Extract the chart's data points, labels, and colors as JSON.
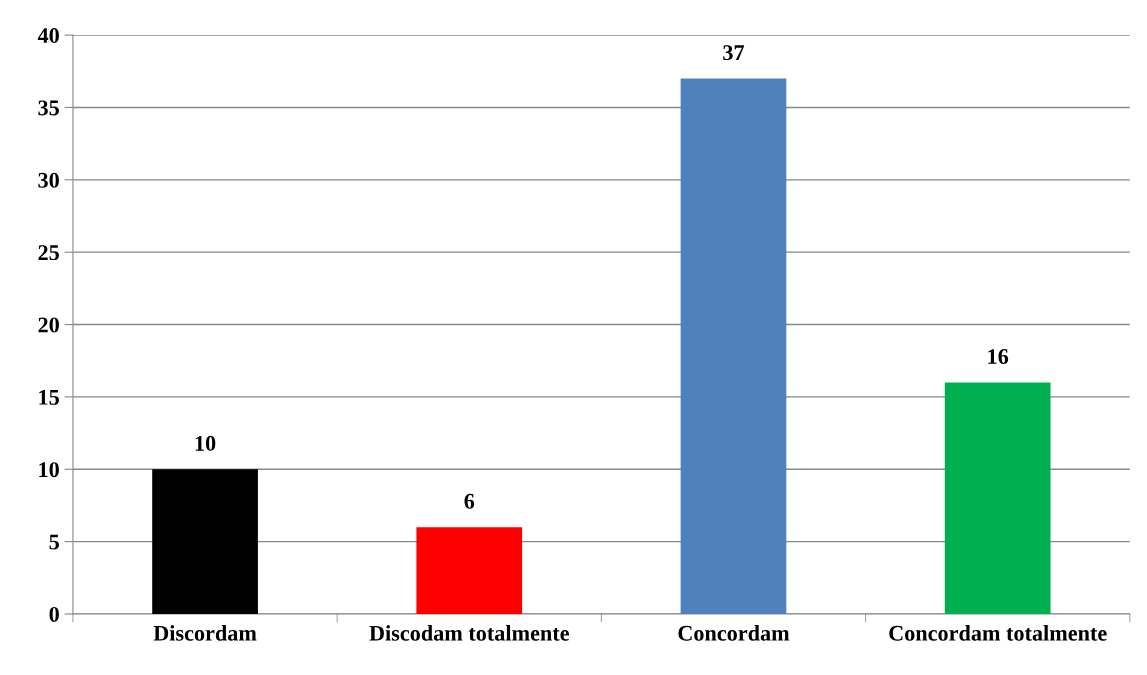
{
  "chart_data": {
    "type": "bar",
    "categories": [
      "Discordam",
      "Discodam totalmente",
      "Concordam",
      "Concordam totalmente"
    ],
    "values": [
      10,
      6,
      37,
      16
    ],
    "colors": [
      "#000000",
      "#ff0000",
      "#4f81bd",
      "#00b050"
    ],
    "ylim": [
      0,
      40
    ],
    "yticks": [
      0,
      5,
      10,
      15,
      20,
      25,
      30,
      35,
      40
    ],
    "grid": "y",
    "data_labels": true,
    "legend": false
  }
}
